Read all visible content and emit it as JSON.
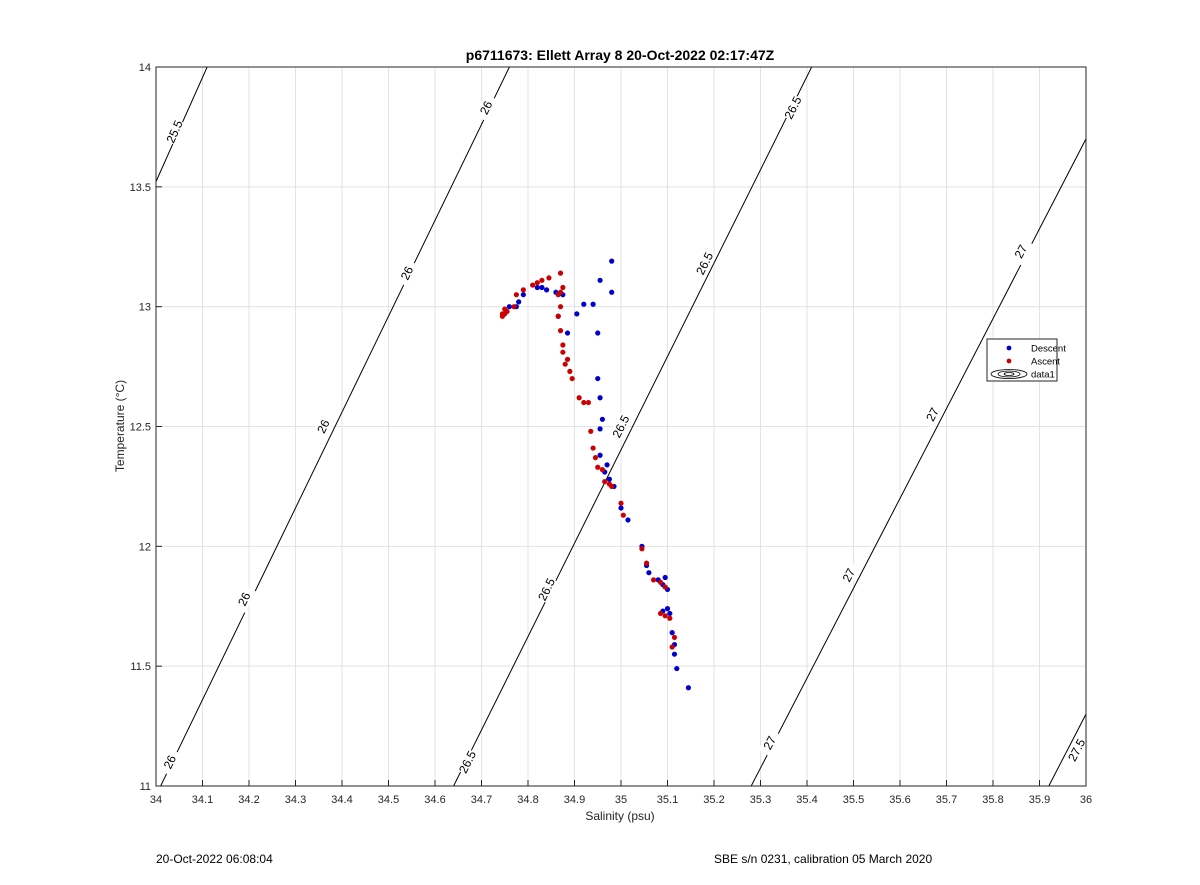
{
  "chart_data": {
    "type": "scatter",
    "title": "p6711673: Ellett Array 8 20-Oct-2022 02:17:47Z",
    "xlabel": "Salinity (psu)",
    "ylabel": "Temperature (°C)",
    "xlim": [
      34,
      36
    ],
    "ylim": [
      11,
      14
    ],
    "x_ticks": [
      34,
      34.1,
      34.2,
      34.3,
      34.4,
      34.5,
      34.6,
      34.7,
      34.8,
      34.9,
      35,
      35.1,
      35.2,
      35.3,
      35.4,
      35.5,
      35.6,
      35.7,
      35.8,
      35.9,
      36
    ],
    "y_ticks": [
      11,
      11.5,
      12,
      12.5,
      13,
      13.5,
      14
    ],
    "grid": true,
    "legend": {
      "placement": "right",
      "entries": [
        {
          "label": "Descent",
          "color": "#0000cc",
          "marker": "dot"
        },
        {
          "label": "Ascent",
          "color": "#cc0000",
          "marker": "dot"
        },
        {
          "label": "data1",
          "color": "#000000",
          "marker": "contour"
        }
      ]
    },
    "contours": [
      {
        "label": "25.5",
        "s_at_t11": 33.42,
        "s_at_t14": 34.11,
        "label_pos": [
          34.04,
          13.73
        ]
      },
      {
        "label": "26",
        "s_at_t11": 34.01,
        "s_at_t14": 34.76,
        "label_pos": [
          34.03,
          11.1
        ]
      },
      {
        "label": "26",
        "s_at_t11": 34.01,
        "s_at_t14": 34.76,
        "label_pos": [
          34.19,
          11.78
        ]
      },
      {
        "label": "26",
        "s_at_t11": 34.01,
        "s_at_t14": 34.76,
        "label_pos": [
          34.36,
          12.5
        ]
      },
      {
        "label": "26",
        "s_at_t11": 34.01,
        "s_at_t14": 34.76,
        "label_pos": [
          34.54,
          13.14
        ]
      },
      {
        "label": "26",
        "s_at_t11": 34.01,
        "s_at_t14": 34.76,
        "label_pos": [
          34.71,
          13.83
        ]
      },
      {
        "label": "26.5",
        "s_at_t11": 34.64,
        "s_at_t14": 35.41,
        "label_pos": [
          34.67,
          11.1
        ]
      },
      {
        "label": "26.5",
        "s_at_t11": 34.64,
        "s_at_t14": 35.41,
        "label_pos": [
          34.84,
          11.82
        ]
      },
      {
        "label": "26.5",
        "s_at_t11": 34.64,
        "s_at_t14": 35.41,
        "label_pos": [
          35.0,
          12.5
        ]
      },
      {
        "label": "26.5",
        "s_at_t11": 34.64,
        "s_at_t14": 35.41,
        "label_pos": [
          35.18,
          13.18
        ]
      },
      {
        "label": "26.5",
        "s_at_t11": 34.64,
        "s_at_t14": 35.41,
        "label_pos": [
          35.37,
          13.83
        ]
      },
      {
        "label": "27",
        "s_at_t11": 35.28,
        "s_at_t14": 36.08,
        "label_pos": [
          35.32,
          11.18
        ]
      },
      {
        "label": "27",
        "s_at_t11": 35.28,
        "s_at_t14": 36.08,
        "label_pos": [
          35.49,
          11.88
        ]
      },
      {
        "label": "27",
        "s_at_t11": 35.28,
        "s_at_t14": 36.08,
        "label_pos": [
          35.67,
          12.55
        ]
      },
      {
        "label": "27",
        "s_at_t11": 35.28,
        "s_at_t14": 36.08,
        "label_pos": [
          35.86,
          13.23
        ]
      },
      {
        "label": "27.5",
        "s_at_t11": 35.92,
        "s_at_t14": 36.72,
        "label_pos": [
          35.98,
          11.15
        ]
      }
    ],
    "series": [
      {
        "name": "Descent",
        "color": "#0000cc",
        "points": [
          [
            34.98,
            13.19
          ],
          [
            34.955,
            13.11
          ],
          [
            34.98,
            13.06
          ],
          [
            34.94,
            13.01
          ],
          [
            34.92,
            13.01
          ],
          [
            34.905,
            12.97
          ],
          [
            34.875,
            13.05
          ],
          [
            34.86,
            13.06
          ],
          [
            34.84,
            13.07
          ],
          [
            34.83,
            13.08
          ],
          [
            34.82,
            13.08
          ],
          [
            34.79,
            13.05
          ],
          [
            34.78,
            13.02
          ],
          [
            34.775,
            13.0
          ],
          [
            34.76,
            13.0
          ],
          [
            34.865,
            12.96
          ],
          [
            34.885,
            12.89
          ],
          [
            34.95,
            12.89
          ],
          [
            34.95,
            12.7
          ],
          [
            34.955,
            12.62
          ],
          [
            34.96,
            12.53
          ],
          [
            34.955,
            12.49
          ],
          [
            34.955,
            12.38
          ],
          [
            34.97,
            12.34
          ],
          [
            34.965,
            12.31
          ],
          [
            34.975,
            12.28
          ],
          [
            34.985,
            12.25
          ],
          [
            35.0,
            12.16
          ],
          [
            35.015,
            12.11
          ],
          [
            35.045,
            12.0
          ],
          [
            35.055,
            11.92
          ],
          [
            35.06,
            11.89
          ],
          [
            35.08,
            11.86
          ],
          [
            35.09,
            11.84
          ],
          [
            35.095,
            11.87
          ],
          [
            35.1,
            11.82
          ],
          [
            35.09,
            11.73
          ],
          [
            35.1,
            11.74
          ],
          [
            35.105,
            11.72
          ],
          [
            35.11,
            11.64
          ],
          [
            35.115,
            11.59
          ],
          [
            35.115,
            11.55
          ],
          [
            35.12,
            11.49
          ],
          [
            35.145,
            11.41
          ]
        ]
      },
      {
        "name": "Ascent",
        "color": "#cc0000",
        "points": [
          [
            34.745,
            12.96
          ],
          [
            34.75,
            12.97
          ],
          [
            34.755,
            12.98
          ],
          [
            34.745,
            12.97
          ],
          [
            34.75,
            12.99
          ],
          [
            34.77,
            13.0
          ],
          [
            34.775,
            13.05
          ],
          [
            34.79,
            13.07
          ],
          [
            34.81,
            13.09
          ],
          [
            34.82,
            13.1
          ],
          [
            34.83,
            13.11
          ],
          [
            34.845,
            13.12
          ],
          [
            34.87,
            13.14
          ],
          [
            34.875,
            13.08
          ],
          [
            34.87,
            13.06
          ],
          [
            34.865,
            13.05
          ],
          [
            34.87,
            13.0
          ],
          [
            34.865,
            12.96
          ],
          [
            34.87,
            12.9
          ],
          [
            34.875,
            12.84
          ],
          [
            34.875,
            12.81
          ],
          [
            34.885,
            12.78
          ],
          [
            34.88,
            12.76
          ],
          [
            34.89,
            12.73
          ],
          [
            34.895,
            12.7
          ],
          [
            34.91,
            12.62
          ],
          [
            34.92,
            12.6
          ],
          [
            34.93,
            12.6
          ],
          [
            34.935,
            12.48
          ],
          [
            34.94,
            12.41
          ],
          [
            34.945,
            12.37
          ],
          [
            34.95,
            12.33
          ],
          [
            34.96,
            12.32
          ],
          [
            34.965,
            12.27
          ],
          [
            34.975,
            12.26
          ],
          [
            34.98,
            12.25
          ],
          [
            35.0,
            12.18
          ],
          [
            35.005,
            12.13
          ],
          [
            35.045,
            11.99
          ],
          [
            35.055,
            11.93
          ],
          [
            35.07,
            11.86
          ],
          [
            35.085,
            11.85
          ],
          [
            35.095,
            11.83
          ],
          [
            35.085,
            11.72
          ],
          [
            35.095,
            11.71
          ],
          [
            35.105,
            11.7
          ],
          [
            35.115,
            11.62
          ],
          [
            35.11,
            11.58
          ]
        ]
      }
    ]
  },
  "footer": {
    "left": "20-Oct-2022 06:08:04",
    "right": "SBE s/n 0231, calibration 05 March 2020"
  }
}
